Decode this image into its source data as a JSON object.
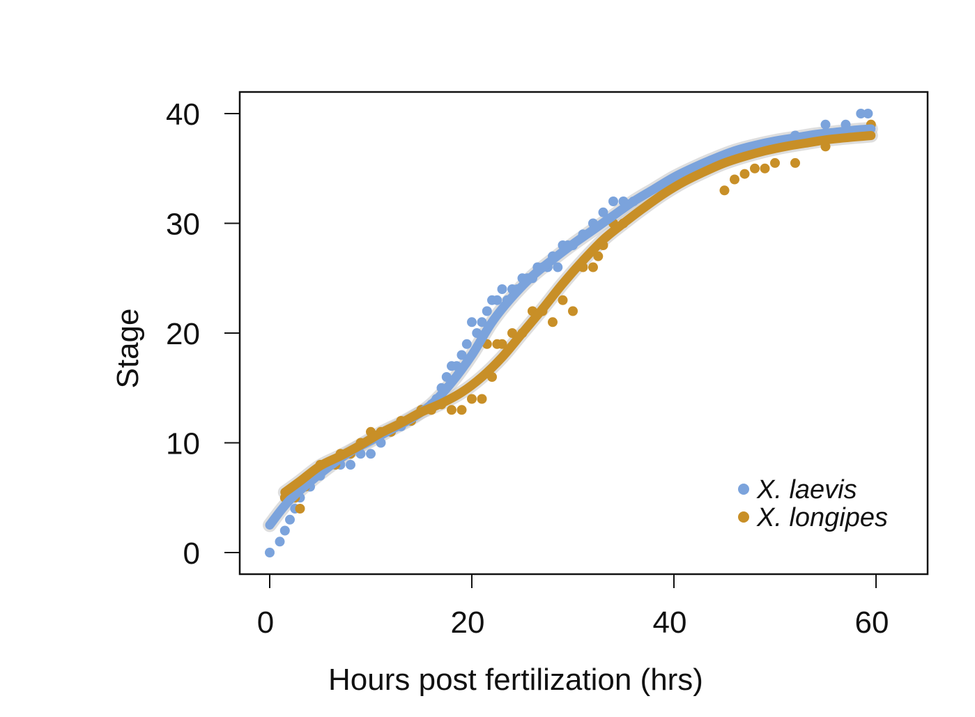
{
  "chart_data": {
    "type": "scatter",
    "title": "",
    "xlabel": "Hours post fertilization (hrs)",
    "ylabel": "Stage",
    "xlim": [
      -3,
      65
    ],
    "ylim": [
      -2,
      42
    ],
    "xticks": [
      0,
      20,
      40,
      60
    ],
    "yticks": [
      0,
      10,
      20,
      30,
      40
    ],
    "xtick_labels": [
      "0",
      "20",
      "40",
      "60"
    ],
    "ytick_labels": [
      "0",
      "10",
      "20",
      "30",
      "40"
    ],
    "grid": false,
    "legend_position": "bottom-right",
    "series": [
      {
        "name": "X. laevis",
        "color": "#7BA3DC",
        "points": [
          [
            0,
            0
          ],
          [
            1,
            1
          ],
          [
            1.5,
            2
          ],
          [
            2,
            3
          ],
          [
            2.5,
            4
          ],
          [
            3,
            5
          ],
          [
            4,
            6
          ],
          [
            5,
            7
          ],
          [
            6,
            8
          ],
          [
            7,
            8
          ],
          [
            8,
            8
          ],
          [
            9,
            9
          ],
          [
            10,
            9
          ],
          [
            11,
            10
          ],
          [
            12,
            11
          ],
          [
            13,
            11.5
          ],
          [
            14,
            12
          ],
          [
            15,
            13
          ],
          [
            16,
            13.5
          ],
          [
            16.5,
            14
          ],
          [
            17,
            15
          ],
          [
            17.5,
            16
          ],
          [
            18,
            17
          ],
          [
            18.5,
            17
          ],
          [
            19,
            18
          ],
          [
            19.5,
            19
          ],
          [
            20,
            21
          ],
          [
            20.5,
            20
          ],
          [
            21,
            21
          ],
          [
            21.5,
            22
          ],
          [
            22,
            23
          ],
          [
            22.5,
            23
          ],
          [
            23,
            24
          ],
          [
            23.5,
            23
          ],
          [
            24,
            24
          ],
          [
            24.5,
            24
          ],
          [
            25,
            25
          ],
          [
            25.5,
            25
          ],
          [
            26,
            25
          ],
          [
            26.5,
            26
          ],
          [
            27,
            26
          ],
          [
            27.5,
            26
          ],
          [
            28,
            27
          ],
          [
            28.5,
            26
          ],
          [
            29,
            28
          ],
          [
            29.5,
            28
          ],
          [
            30,
            28
          ],
          [
            31,
            29
          ],
          [
            32,
            30
          ],
          [
            33,
            31
          ],
          [
            34,
            32
          ],
          [
            35,
            32
          ],
          [
            36,
            32
          ],
          [
            45,
            36
          ],
          [
            50,
            37
          ],
          [
            52,
            38
          ],
          [
            55,
            39
          ],
          [
            57,
            39
          ],
          [
            58.5,
            40
          ],
          [
            59.2,
            40
          ]
        ],
        "fit": [
          [
            0,
            2.5
          ],
          [
            2,
            4.8
          ],
          [
            5,
            7.2
          ],
          [
            8,
            9.2
          ],
          [
            10,
            10.2
          ],
          [
            12,
            11.2
          ],
          [
            14,
            12.2
          ],
          [
            16,
            13.5
          ],
          [
            18,
            15.5
          ],
          [
            20,
            18
          ],
          [
            22,
            21
          ],
          [
            24,
            23.3
          ],
          [
            26,
            25.2
          ],
          [
            28,
            26.7
          ],
          [
            30,
            28.1
          ],
          [
            32,
            29.4
          ],
          [
            34,
            30.7
          ],
          [
            36,
            32
          ],
          [
            38,
            33.1
          ],
          [
            40,
            34.2
          ],
          [
            42,
            35.1
          ],
          [
            44,
            35.9
          ],
          [
            46,
            36.6
          ],
          [
            48,
            37.1
          ],
          [
            50,
            37.5
          ],
          [
            52,
            37.8
          ],
          [
            54,
            38.1
          ],
          [
            56,
            38.3
          ],
          [
            58,
            38.5
          ],
          [
            59.5,
            38.6
          ]
        ]
      },
      {
        "name": "X. longipes",
        "color": "#C88F27",
        "points": [
          [
            1.5,
            5
          ],
          [
            2.5,
            5
          ],
          [
            3,
            4
          ],
          [
            3.5,
            6
          ],
          [
            4,
            7
          ],
          [
            4.5,
            7
          ],
          [
            5,
            8
          ],
          [
            5.5,
            8
          ],
          [
            6,
            8
          ],
          [
            6.5,
            8
          ],
          [
            7,
            9
          ],
          [
            8,
            9
          ],
          [
            9,
            10
          ],
          [
            10,
            11
          ],
          [
            11,
            11
          ],
          [
            12,
            11
          ],
          [
            13,
            12
          ],
          [
            14,
            12
          ],
          [
            15,
            13
          ],
          [
            16,
            13
          ],
          [
            17,
            13.5
          ],
          [
            18,
            13
          ],
          [
            19,
            13
          ],
          [
            20,
            14
          ],
          [
            21,
            14
          ],
          [
            21.5,
            19
          ],
          [
            22,
            16
          ],
          [
            22.5,
            19
          ],
          [
            23,
            19
          ],
          [
            24,
            20
          ],
          [
            25,
            20
          ],
          [
            26,
            22
          ],
          [
            27,
            22
          ],
          [
            28,
            21
          ],
          [
            29,
            23
          ],
          [
            30,
            22
          ],
          [
            31,
            26
          ],
          [
            32,
            26
          ],
          [
            32.5,
            27
          ],
          [
            33,
            28
          ],
          [
            34,
            30
          ],
          [
            35,
            30
          ],
          [
            45,
            33
          ],
          [
            46,
            34
          ],
          [
            47,
            34.5
          ],
          [
            48,
            35
          ],
          [
            49,
            35
          ],
          [
            50,
            35.5
          ],
          [
            52,
            35.5
          ],
          [
            55,
            37
          ],
          [
            57,
            38
          ],
          [
            59,
            38
          ],
          [
            59.5,
            39
          ]
        ],
        "fit": [
          [
            1.5,
            5.5
          ],
          [
            3,
            6.5
          ],
          [
            5,
            7.9
          ],
          [
            7,
            8.8
          ],
          [
            9,
            9.8
          ],
          [
            11,
            10.9
          ],
          [
            13,
            11.8
          ],
          [
            15,
            12.8
          ],
          [
            17,
            13.6
          ],
          [
            19,
            14.6
          ],
          [
            21,
            16
          ],
          [
            23,
            17.8
          ],
          [
            25,
            20
          ],
          [
            27,
            22.2
          ],
          [
            29,
            24.5
          ],
          [
            31,
            26.6
          ],
          [
            33,
            28.5
          ],
          [
            35,
            30
          ],
          [
            37,
            31.4
          ],
          [
            39,
            32.7
          ],
          [
            41,
            33.8
          ],
          [
            43,
            34.7
          ],
          [
            45,
            35.5
          ],
          [
            47,
            36.1
          ],
          [
            49,
            36.6
          ],
          [
            51,
            37
          ],
          [
            53,
            37.3
          ],
          [
            55,
            37.6
          ],
          [
            57,
            37.8
          ],
          [
            59.5,
            38
          ]
        ]
      }
    ]
  }
}
